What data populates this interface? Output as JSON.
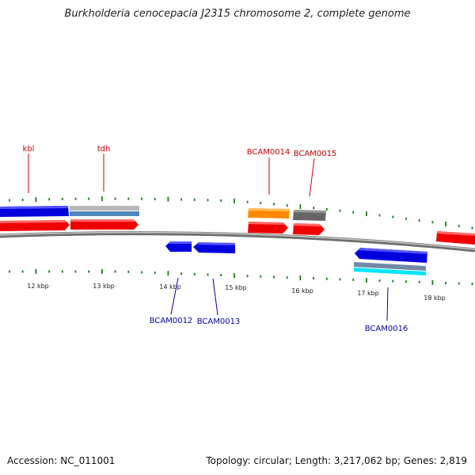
{
  "title": "Burkholderia cenocepacia J2315 chromosome 2, complete genome",
  "footer": {
    "accession": "Accession: NC_011001",
    "topology": "Topology: circular; Length: 3,217,062 bp; Genes: 2,819"
  },
  "colors": {
    "backbone": "#8a8a8a",
    "forward_label": "#cc0000",
    "reverse_label": "#0000aa",
    "tick": "#1a7a1a",
    "cds_red": "#ee0000",
    "cds_blue": "#0000dd",
    "orange": "#ff8800",
    "gray": "#666666",
    "steel": "#4f86b8",
    "cyan": "#00e5ff"
  },
  "scale": {
    "unit": "kbp",
    "labels": [
      "12 kbp",
      "13 kbp",
      "14 kbp",
      "15 kbp",
      "16 kbp",
      "17 kbp",
      "18 kbp"
    ]
  },
  "gene_labels": {
    "forward": [
      "kbl",
      "tdh",
      "BCAM0014",
      "BCAM0015"
    ],
    "reverse": [
      "BCAM0012",
      "BCAM0013",
      "BCAM0016"
    ]
  }
}
